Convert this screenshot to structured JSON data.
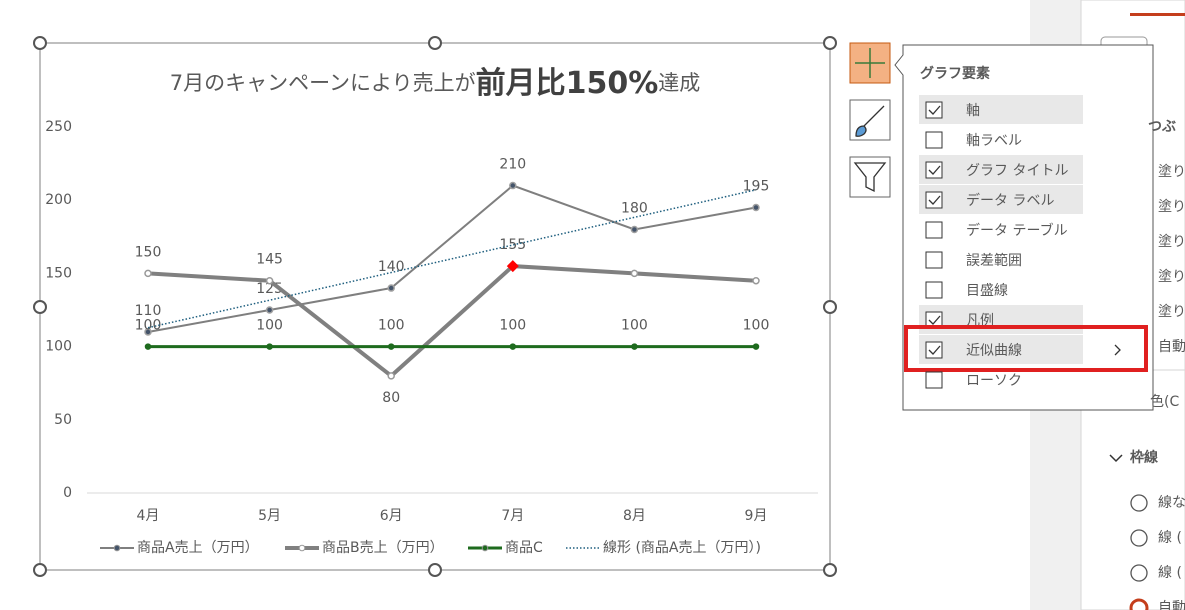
{
  "chart_data": {
    "type": "line",
    "title": [
      "7月のキャンペーンにより売上が",
      "前月比150%",
      "達成"
    ],
    "categories": [
      "4月",
      "5月",
      "6月",
      "7月",
      "8月",
      "9月"
    ],
    "ylim": [
      0,
      250
    ],
    "yticks": [
      0,
      50,
      100,
      150,
      200,
      250
    ],
    "series": [
      {
        "name": "商品A売上（万円）",
        "color": "#7f7f7f",
        "marker_color": "#44546a",
        "width": 2,
        "values": [
          110,
          125,
          140,
          210,
          180,
          195
        ],
        "label_positions": [
          "above",
          "above",
          "above",
          "above",
          "above",
          "above"
        ]
      },
      {
        "name": "商品B売上（万円）",
        "color": "#808080",
        "marker_color": "#ffffff",
        "width": 4,
        "values": [
          150,
          145,
          80,
          155,
          150,
          145
        ],
        "label_positions": [
          "above",
          "above",
          "below",
          "above",
          "none",
          "none"
        ],
        "selected_point": 3
      },
      {
        "name": "商品C",
        "color": "#1e6b1e",
        "marker_color": "#1e6b1e",
        "width": 3,
        "values": [
          100,
          100,
          100,
          100,
          100,
          100
        ],
        "label_positions": [
          "above",
          "above",
          "above",
          "above",
          "above",
          "above"
        ]
      },
      {
        "name": "線形 (商品A売上（万円）)",
        "color": "#1f5f7f",
        "dotted": true,
        "width": 1.5,
        "values": [
          112.9,
          131.7,
          150.6,
          169.4,
          188.3,
          207.1
        ]
      }
    ]
  },
  "elements_menu": {
    "title": "グラフ要素",
    "items": [
      {
        "label": "軸",
        "checked": true
      },
      {
        "label": "軸ラベル",
        "checked": false
      },
      {
        "label": "グラフ タイトル",
        "checked": true
      },
      {
        "label": "データ ラベル",
        "checked": true
      },
      {
        "label": "データ テーブル",
        "checked": false
      },
      {
        "label": "誤差範囲",
        "checked": false
      },
      {
        "label": "目盛線",
        "checked": false
      },
      {
        "label": "凡例",
        "checked": true
      },
      {
        "label": "近似曲線",
        "checked": true,
        "selected": true,
        "submenu": true
      },
      {
        "label": "ローソク",
        "checked": false
      }
    ]
  },
  "format_panel": {
    "fill_heading": "つぶ",
    "fill_options": [
      "塗り",
      "塗り",
      "塗り",
      "塗り",
      "塗り",
      "自動"
    ],
    "color_label": "色(C",
    "border_heading": "枠線",
    "line_options": [
      "線な",
      "線 (",
      "線 (",
      "自動"
    ]
  }
}
